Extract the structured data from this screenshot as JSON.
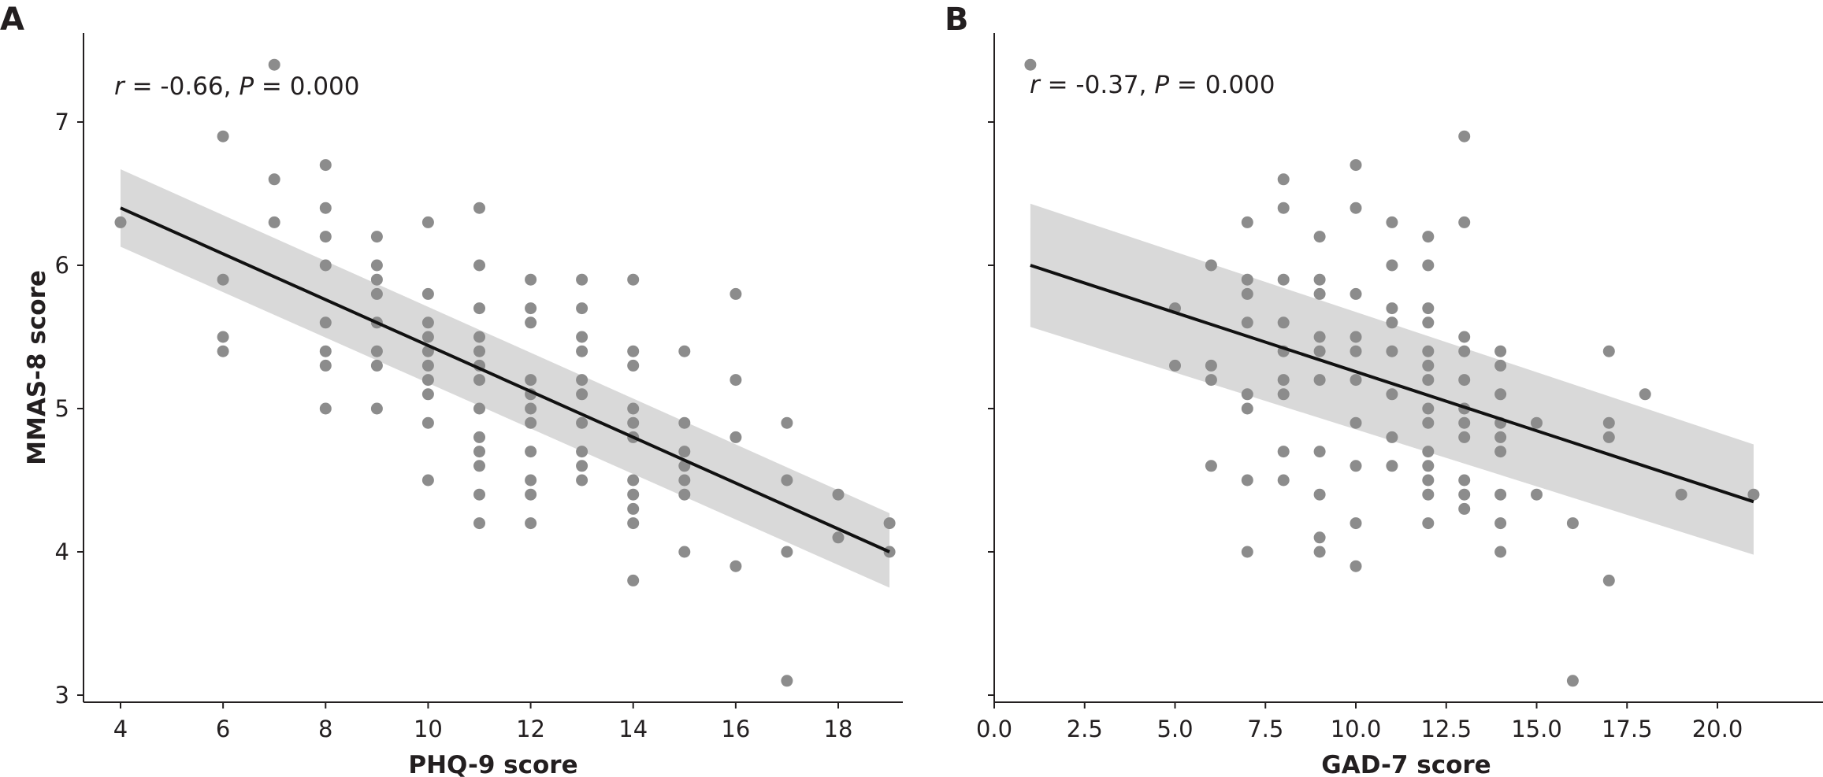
{
  "chart_data": [
    {
      "type": "scatter",
      "panel_label": "A",
      "xlabel": "PHQ-9 score",
      "ylabel": "MMAS-8 score",
      "xlim": [
        3.3,
        19.7
      ],
      "ylim": [
        2.9,
        7.6
      ],
      "x_ticks": [
        4,
        6,
        8,
        10,
        12,
        14,
        16,
        18
      ],
      "x_tick_labels": [
        "4",
        "6",
        "8",
        "10",
        "12",
        "14",
        "16",
        "18"
      ],
      "y_ticks": [
        3,
        4,
        5,
        6,
        7
      ],
      "y_tick_labels": [
        "3",
        "4",
        "5",
        "6",
        "7"
      ],
      "annotation": {
        "r_symbol": "r",
        "r_text": " = -0.66, ",
        "p_symbol": "P",
        "p_text": " = 0.000"
      },
      "points": [
        [
          4,
          6.3
        ],
        [
          6,
          6.9
        ],
        [
          6,
          5.9
        ],
        [
          6,
          5.5
        ],
        [
          6,
          5.4
        ],
        [
          7,
          7.4
        ],
        [
          7,
          6.6
        ],
        [
          7,
          6.3
        ],
        [
          8,
          6.7
        ],
        [
          8,
          6.4
        ],
        [
          8,
          6.2
        ],
        [
          8,
          6.0
        ],
        [
          8,
          5.6
        ],
        [
          8,
          5.4
        ],
        [
          8,
          5.3
        ],
        [
          8,
          5.0
        ],
        [
          9,
          6.2
        ],
        [
          9,
          6.0
        ],
        [
          9,
          5.9
        ],
        [
          9,
          5.8
        ],
        [
          9,
          5.6
        ],
        [
          9,
          5.4
        ],
        [
          9,
          5.3
        ],
        [
          9,
          5.0
        ],
        [
          10,
          6.3
        ],
        [
          10,
          5.8
        ],
        [
          10,
          5.6
        ],
        [
          10,
          5.5
        ],
        [
          10,
          5.4
        ],
        [
          10,
          5.3
        ],
        [
          10,
          5.2
        ],
        [
          10,
          5.1
        ],
        [
          10,
          4.9
        ],
        [
          10,
          4.5
        ],
        [
          11,
          6.4
        ],
        [
          11,
          6.0
        ],
        [
          11,
          5.7
        ],
        [
          11,
          5.5
        ],
        [
          11,
          5.4
        ],
        [
          11,
          5.3
        ],
        [
          11,
          5.2
        ],
        [
          11,
          5.0
        ],
        [
          11,
          4.8
        ],
        [
          11,
          4.7
        ],
        [
          11,
          4.6
        ],
        [
          11,
          4.4
        ],
        [
          11,
          4.2
        ],
        [
          12,
          5.9
        ],
        [
          12,
          5.7
        ],
        [
          12,
          5.6
        ],
        [
          12,
          5.2
        ],
        [
          12,
          5.1
        ],
        [
          12,
          5.0
        ],
        [
          12,
          4.9
        ],
        [
          12,
          4.7
        ],
        [
          12,
          4.5
        ],
        [
          12,
          4.4
        ],
        [
          12,
          4.2
        ],
        [
          13,
          5.9
        ],
        [
          13,
          5.7
        ],
        [
          13,
          5.5
        ],
        [
          13,
          5.4
        ],
        [
          13,
          5.2
        ],
        [
          13,
          5.1
        ],
        [
          13,
          4.9
        ],
        [
          13,
          4.7
        ],
        [
          13,
          4.6
        ],
        [
          13,
          4.5
        ],
        [
          14,
          5.9
        ],
        [
          14,
          5.4
        ],
        [
          14,
          5.3
        ],
        [
          14,
          5.0
        ],
        [
          14,
          4.9
        ],
        [
          14,
          4.8
        ],
        [
          14,
          4.5
        ],
        [
          14,
          4.4
        ],
        [
          14,
          4.3
        ],
        [
          14,
          4.2
        ],
        [
          14,
          3.8
        ],
        [
          15,
          5.4
        ],
        [
          15,
          4.9
        ],
        [
          15,
          4.7
        ],
        [
          15,
          4.6
        ],
        [
          15,
          4.5
        ],
        [
          15,
          4.4
        ],
        [
          15,
          4.0
        ],
        [
          16,
          5.8
        ],
        [
          16,
          5.2
        ],
        [
          16,
          4.8
        ],
        [
          16,
          3.9
        ],
        [
          17,
          4.9
        ],
        [
          17,
          4.5
        ],
        [
          17,
          4.0
        ],
        [
          17,
          3.1
        ],
        [
          18,
          4.4
        ],
        [
          18,
          4.1
        ],
        [
          19,
          4.2
        ],
        [
          19,
          4.0
        ]
      ],
      "fit_line": {
        "x": [
          4,
          19
        ],
        "y": [
          6.4,
          4.0
        ]
      },
      "ci_band": {
        "x": [
          4,
          19
        ],
        "upper": [
          6.67,
          4.27
        ],
        "lower": [
          6.13,
          3.75
        ]
      }
    },
    {
      "type": "scatter",
      "panel_label": "B",
      "xlabel": "GAD-7 score",
      "ylabel": "",
      "xlim": [
        -0.2,
        21.8
      ],
      "ylim": [
        2.9,
        7.6
      ],
      "x_ticks": [
        0,
        2.5,
        5,
        7.5,
        10,
        12.5,
        15,
        17.5,
        20
      ],
      "x_tick_labels": [
        "0.0",
        "2.5",
        "5.0",
        "7.5",
        "10.0",
        "12.5",
        "15.0",
        "17.5",
        "20.0"
      ],
      "y_ticks": [
        3,
        4,
        5,
        6,
        7
      ],
      "y_tick_labels": [
        "",
        "",
        "",
        "",
        ""
      ],
      "annotation": {
        "r_symbol": "r",
        "r_text": " = -0.37, ",
        "p_symbol": "P",
        "p_text": " = 0.000"
      },
      "points": [
        [
          1,
          7.4
        ],
        [
          5,
          5.7
        ],
        [
          5,
          5.3
        ],
        [
          6,
          6.0
        ],
        [
          6,
          5.3
        ],
        [
          6,
          5.2
        ],
        [
          6,
          4.6
        ],
        [
          7,
          6.3
        ],
        [
          7,
          5.9
        ],
        [
          7,
          5.8
        ],
        [
          7,
          5.6
        ],
        [
          7,
          5.1
        ],
        [
          7,
          5.0
        ],
        [
          7,
          4.5
        ],
        [
          7,
          4.0
        ],
        [
          8,
          6.6
        ],
        [
          8,
          6.4
        ],
        [
          8,
          5.9
        ],
        [
          8,
          5.6
        ],
        [
          8,
          5.4
        ],
        [
          8,
          5.2
        ],
        [
          8,
          5.1
        ],
        [
          8,
          4.7
        ],
        [
          8,
          4.5
        ],
        [
          9,
          6.2
        ],
        [
          9,
          5.9
        ],
        [
          9,
          5.8
        ],
        [
          9,
          5.5
        ],
        [
          9,
          5.4
        ],
        [
          9,
          5.2
        ],
        [
          9,
          4.7
        ],
        [
          9,
          4.4
        ],
        [
          9,
          4.1
        ],
        [
          9,
          4.0
        ],
        [
          10,
          6.7
        ],
        [
          10,
          6.4
        ],
        [
          10,
          5.8
        ],
        [
          10,
          5.5
        ],
        [
          10,
          5.4
        ],
        [
          10,
          5.2
        ],
        [
          10,
          4.9
        ],
        [
          10,
          4.6
        ],
        [
          10,
          4.2
        ],
        [
          10,
          3.9
        ],
        [
          11,
          6.3
        ],
        [
          11,
          6.0
        ],
        [
          11,
          5.7
        ],
        [
          11,
          5.6
        ],
        [
          11,
          5.4
        ],
        [
          11,
          5.1
        ],
        [
          11,
          4.8
        ],
        [
          11,
          4.6
        ],
        [
          12,
          6.2
        ],
        [
          12,
          6.0
        ],
        [
          12,
          5.7
        ],
        [
          12,
          5.6
        ],
        [
          12,
          5.4
        ],
        [
          12,
          5.3
        ],
        [
          12,
          5.2
        ],
        [
          12,
          5.0
        ],
        [
          12,
          4.9
        ],
        [
          12,
          4.7
        ],
        [
          12,
          4.6
        ],
        [
          12,
          4.5
        ],
        [
          12,
          4.4
        ],
        [
          12,
          4.2
        ],
        [
          13,
          6.9
        ],
        [
          13,
          6.3
        ],
        [
          13,
          5.5
        ],
        [
          13,
          5.4
        ],
        [
          13,
          5.2
        ],
        [
          13,
          5.0
        ],
        [
          13,
          4.9
        ],
        [
          13,
          4.8
        ],
        [
          13,
          4.5
        ],
        [
          13,
          4.4
        ],
        [
          13,
          4.3
        ],
        [
          14,
          5.4
        ],
        [
          14,
          5.3
        ],
        [
          14,
          5.1
        ],
        [
          14,
          4.9
        ],
        [
          14,
          4.8
        ],
        [
          14,
          4.7
        ],
        [
          14,
          4.4
        ],
        [
          14,
          4.2
        ],
        [
          14,
          4.0
        ],
        [
          15,
          4.9
        ],
        [
          15,
          4.4
        ],
        [
          16,
          4.2
        ],
        [
          16,
          3.1
        ],
        [
          17,
          5.4
        ],
        [
          17,
          4.9
        ],
        [
          17,
          4.8
        ],
        [
          17,
          3.8
        ],
        [
          18,
          5.1
        ],
        [
          19,
          4.4
        ],
        [
          21,
          4.4
        ]
      ],
      "fit_line": {
        "x": [
          1,
          21
        ],
        "y": [
          6.0,
          4.35
        ]
      },
      "ci_band": {
        "x": [
          1,
          21
        ],
        "upper": [
          6.43,
          4.75
        ],
        "lower": [
          5.57,
          3.98
        ]
      }
    }
  ]
}
